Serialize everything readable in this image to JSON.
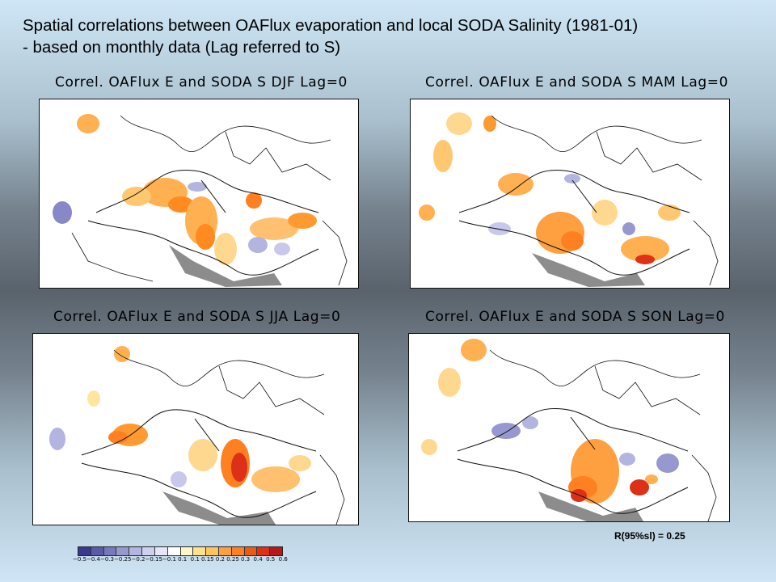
{
  "title": {
    "line1": "Spatial correlations between OAFlux evaporation and local SODA Salinity (1981-01)",
    "line2": "- based on monthly data (Lag referred to S)"
  },
  "panels": [
    {
      "id": "djf",
      "title": "Correl. OAFlux E and SODA S DJF Lag=0"
    },
    {
      "id": "mam",
      "title": "Correl. OAFlux E and SODA S MAM Lag=0"
    },
    {
      "id": "jja",
      "title": "Correl. OAFlux E and SODA S JJA Lag=0"
    },
    {
      "id": "son",
      "title": "Correl. OAFlux E and SODA S SON Lag=0"
    }
  ],
  "significance": "R(95%sl) = 0.25",
  "colorbar": {
    "labels": [
      "−0.5",
      "−0.4",
      "−0.3",
      "−0.25",
      "−0.2",
      "−0.15",
      "−0.1",
      "0.1",
      "0.1",
      "0.15",
      "0.2",
      "0.25",
      "0.3",
      "0.4",
      "0.5",
      "0.6"
    ],
    "colors": [
      "#3a3a8c",
      "#5a5aa8",
      "#7878c0",
      "#9898d0",
      "#b4b4e0",
      "#cfcfee",
      "#e6e6f8",
      "#ffffff",
      "#fff6c8",
      "#ffe08c",
      "#ffc460",
      "#ffa040",
      "#ff8020",
      "#f05a10",
      "#dc3018",
      "#b81818"
    ]
  }
}
